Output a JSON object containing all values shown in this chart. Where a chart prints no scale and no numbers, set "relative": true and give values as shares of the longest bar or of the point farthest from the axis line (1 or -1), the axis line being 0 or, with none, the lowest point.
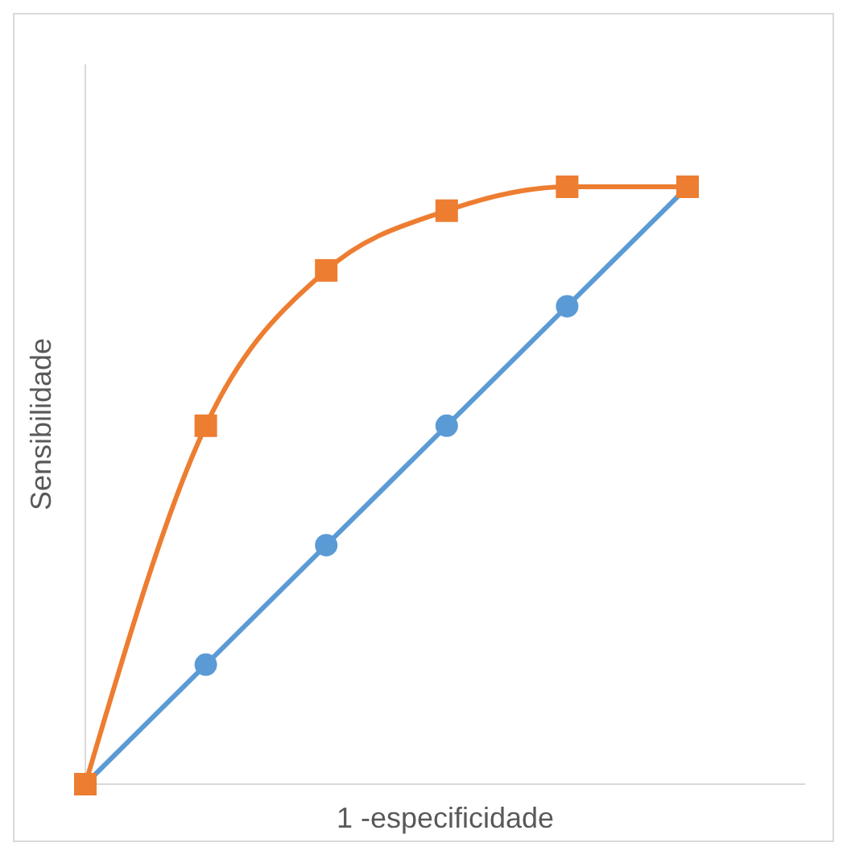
{
  "chart_data": {
    "type": "line",
    "xlabel": "1 -especificidade",
    "ylabel": "Sensibilidade",
    "relative": true,
    "categories": [
      null,
      null,
      null,
      null,
      null,
      null
    ],
    "grid": false,
    "legend": false,
    "series": [
      {
        "color": "#5b9bd5",
        "values": [
          0,
          0.2,
          0.4,
          0.6,
          0.8,
          1
        ],
        "marker": "circle"
      },
      {
        "color": "#ed7d31",
        "values": [
          0,
          0.6,
          0.86,
          0.96,
          1,
          1
        ],
        "marker": "square"
      }
    ]
  }
}
